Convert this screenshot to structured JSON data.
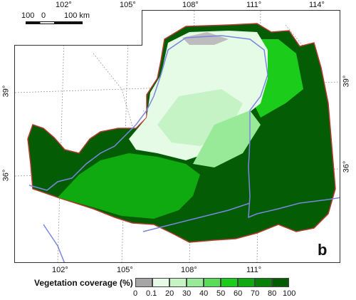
{
  "map": {
    "panel_label": "b",
    "top_ticks": [
      "102°",
      "105°",
      "108°",
      "111°",
      "114°"
    ],
    "bottom_ticks": [
      "102°",
      "105°",
      "108°",
      "111°"
    ],
    "left_ticks": [
      "39°",
      "36°"
    ],
    "right_ticks": [
      "39°",
      "36°"
    ],
    "scale": {
      "left": "100",
      "mid": "0",
      "right": "100 km"
    },
    "colors": {
      "boundary": "#b03a2e",
      "river": "#7b86e0",
      "grid": "#9a9a9a",
      "water": "#bdbdbd"
    }
  },
  "legend": {
    "title": "Vegetation coverage (%) :",
    "ticks": [
      "0",
      "0.1",
      "20",
      "30",
      "40",
      "50",
      "60",
      "70",
      "80",
      "100"
    ],
    "colors": [
      "#a6a6a6",
      "#e6fbe6",
      "#c5f3c5",
      "#98ea98",
      "#59dd59",
      "#1bcc1b",
      "#0faa0f",
      "#078107",
      "#045d04"
    ]
  }
}
